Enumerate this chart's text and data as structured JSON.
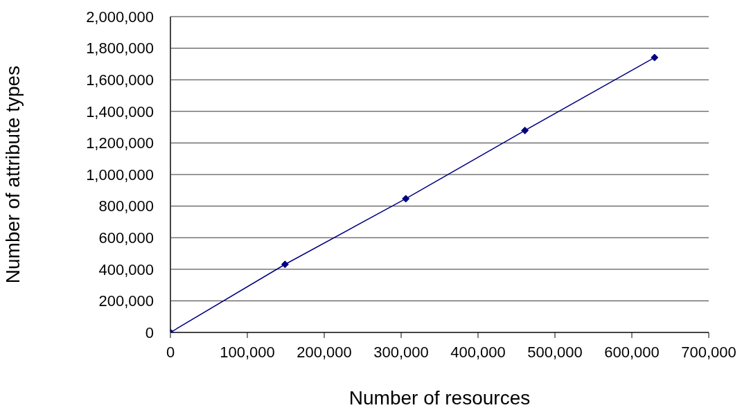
{
  "chart_data": {
    "type": "line",
    "xlabel": "Number of resources",
    "ylabel": "Number of attribute types",
    "x": [
      0,
      149000,
      306000,
      461000,
      629500
    ],
    "series": [
      {
        "color": "#000080",
        "values": [
          0,
          431000,
          847000,
          1279000,
          1741000
        ]
      }
    ],
    "xlim": [
      0,
      700000
    ],
    "xticks": [
      {
        "value": 0,
        "label": "0"
      },
      {
        "value": 100000,
        "label": "100,000"
      },
      {
        "value": 200000,
        "label": "200,000"
      },
      {
        "value": 300000,
        "label": "300,000"
      },
      {
        "value": 400000,
        "label": "400,000"
      },
      {
        "value": 500000,
        "label": "500,000"
      },
      {
        "value": 600000,
        "label": "600,000"
      },
      {
        "value": 700000,
        "label": "700,000"
      }
    ],
    "ylim": [
      0,
      2000000
    ],
    "yticks": [
      {
        "value": 0,
        "label": "0"
      },
      {
        "value": 200000,
        "label": "200,000"
      },
      {
        "value": 400000,
        "label": "400,000"
      },
      {
        "value": 600000,
        "label": "600,000"
      },
      {
        "value": 800000,
        "label": "800,000"
      },
      {
        "value": 1000000,
        "label": "1,000,000"
      },
      {
        "value": 1200000,
        "label": "1,200,000"
      },
      {
        "value": 1400000,
        "label": "1,400,000"
      },
      {
        "value": 1600000,
        "label": "1,600,000"
      },
      {
        "value": 1800000,
        "label": "1,800,000"
      },
      {
        "value": 2000000,
        "label": "2,000,000"
      }
    ],
    "grid": "y",
    "marker": "diamond",
    "line_style": "solid",
    "legend": false
  }
}
